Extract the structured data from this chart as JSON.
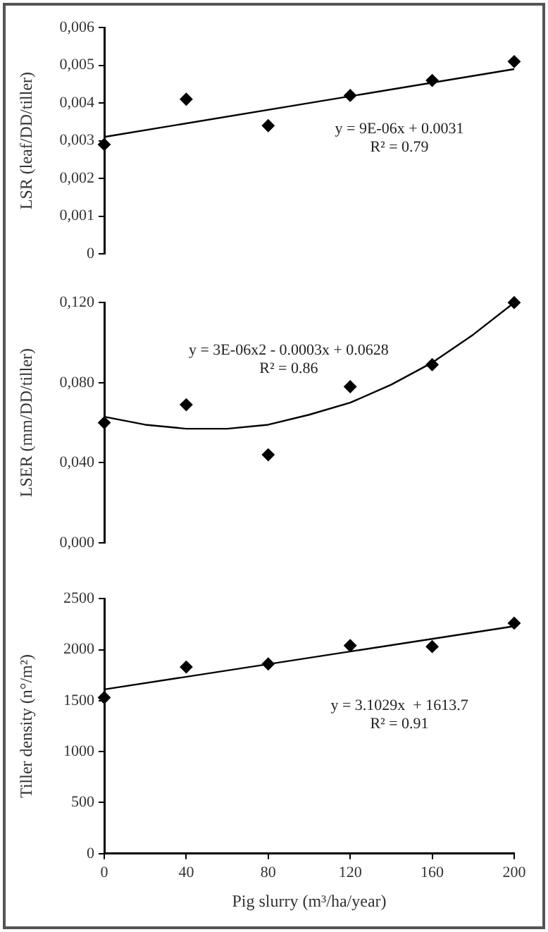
{
  "chart_data": [
    {
      "type": "scatter",
      "ylabel": "LSR (leaf/DD/tiller)",
      "x": [
        0,
        40,
        80,
        120,
        160,
        200
      ],
      "xlim": [
        0,
        200
      ],
      "ylim": [
        0,
        0.006
      ],
      "yticks": [
        0,
        {
          "value": 0.001,
          "label": "0,001"
        },
        {
          "value": 0.002,
          "label": "0,002"
        },
        {
          "value": 0.003,
          "label": "0,003"
        },
        {
          "value": 0.004,
          "label": "0,004"
        },
        {
          "value": 0.005,
          "label": "0,005"
        },
        {
          "value": 0.006,
          "label": "0,006"
        }
      ],
      "tick_labels": "y",
      "grid": false,
      "legend": false,
      "marker": "diamond",
      "series": [
        {
          "color": "#000000",
          "values": [
            0.0029,
            0.0041,
            0.0034,
            0.0042,
            0.0046,
            0.0051
          ]
        },
        {
          "type": "line",
          "marker": "none",
          "color": "#000000",
          "x": [
            0,
            200
          ],
          "values": [
            0.0031,
            0.0049
          ]
        }
      ],
      "annotations": [
        "y = 9E-06x + 0.0031",
        "R² = 0.79"
      ]
    },
    {
      "type": "scatter",
      "ylabel": "LSER (mm/DD/tiller)",
      "x": [
        0,
        40,
        80,
        120,
        160,
        200
      ],
      "xlim": [
        0,
        200
      ],
      "ylim": [
        0,
        0.12
      ],
      "yticks": [
        {
          "value": 0,
          "label": "0,000"
        },
        {
          "value": 0.04,
          "label": "0,040"
        },
        {
          "value": 0.08,
          "label": "0,080"
        },
        {
          "value": 0.12,
          "label": "0,120"
        }
      ],
      "tick_labels": "y",
      "grid": false,
      "legend": false,
      "marker": "diamond",
      "series": [
        {
          "color": "#000000",
          "values": [
            0.06,
            0.069,
            0.044,
            0.078,
            0.089,
            0.12
          ]
        },
        {
          "type": "line",
          "marker": "none",
          "color": "#000000",
          "x": [
            0,
            20,
            40,
            60,
            80,
            100,
            120,
            140,
            160,
            180,
            200
          ],
          "values": [
            0.063,
            0.059,
            0.057,
            0.057,
            0.059,
            0.064,
            0.07,
            0.079,
            0.09,
            0.104,
            0.12
          ]
        }
      ],
      "annotations": [
        "y = 3E-06x2 - 0.0003x + 0.0628",
        "R² = 0.86"
      ]
    },
    {
      "type": "scatter",
      "xlabel": "Pig slurry (m³/ha/year)",
      "ylabel": "Tiller density (n°/m²)",
      "x": [
        0,
        40,
        80,
        120,
        160,
        200
      ],
      "xlim": [
        0,
        200
      ],
      "xticks": [
        0,
        40,
        80,
        120,
        160,
        200
      ],
      "ylim": [
        0,
        2500
      ],
      "yticks": [
        0,
        500,
        1000,
        1500,
        2000,
        2500
      ],
      "grid": false,
      "legend": false,
      "marker": "diamond",
      "series": [
        {
          "color": "#000000",
          "values": [
            1530,
            1830,
            1860,
            2040,
            2030,
            2260
          ]
        },
        {
          "type": "line",
          "marker": "none",
          "color": "#000000",
          "x": [
            0,
            200
          ],
          "values": [
            1610,
            2230
          ]
        }
      ],
      "annotations": [
        "y = 3.1029x  + 1613.7",
        "R² = 0.91"
      ]
    }
  ]
}
